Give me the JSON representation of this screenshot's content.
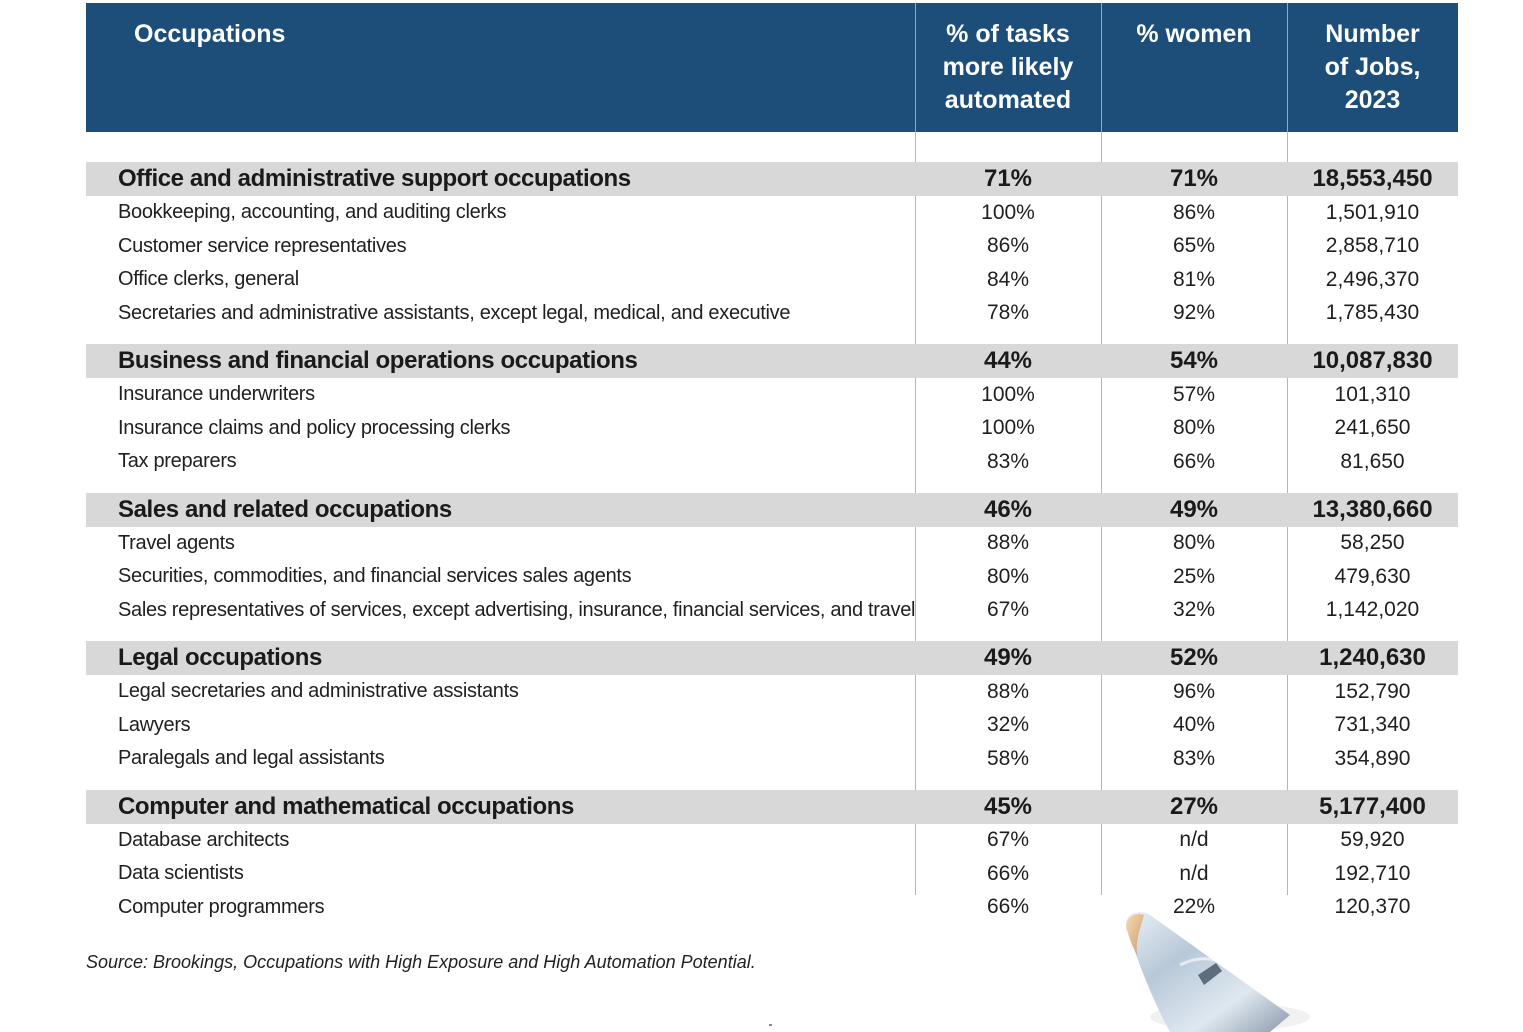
{
  "header": {
    "occupations": "Occupations",
    "pct_automated": [
      "% of tasks",
      "more likely",
      "automated"
    ],
    "pct_women": "% women",
    "jobs": [
      "Number",
      "of Jobs,",
      "2023"
    ]
  },
  "sections": [
    {
      "category": {
        "name": "Office and administrative support occupations",
        "automated": "71%",
        "women": "71%",
        "jobs": "18,553,450"
      },
      "rows": [
        {
          "name": "Bookkeeping, accounting, and auditing clerks",
          "automated": "100%",
          "women": "86%",
          "jobs": "1,501,910"
        },
        {
          "name": "Customer service representatives",
          "automated": "86%",
          "women": "65%",
          "jobs": "2,858,710"
        },
        {
          "name": "Office clerks, general",
          "automated": "84%",
          "women": "81%",
          "jobs": "2,496,370"
        },
        {
          "name": "Secretaries and administrative assistants, except legal,  medical, and executive",
          "automated": "78%",
          "women": "92%",
          "jobs": "1,785,430"
        }
      ]
    },
    {
      "category": {
        "name": "Business and financial operations occupations",
        "automated": "44%",
        "women": "54%",
        "jobs": "10,087,830"
      },
      "rows": [
        {
          "name": "Insurance underwriters",
          "automated": "100%",
          "women": "57%",
          "jobs": "101,310"
        },
        {
          "name": "Insurance claims and policy processing clerks",
          "automated": "100%",
          "women": "80%",
          "jobs": "241,650"
        },
        {
          "name": "Tax preparers",
          "automated": "83%",
          "women": "66%",
          "jobs": "81,650"
        }
      ]
    },
    {
      "category": {
        "name": "Sales and related occupations",
        "automated": "46%",
        "women": "49%",
        "jobs": "13,380,660"
      },
      "rows": [
        {
          "name": "Travel agents",
          "automated": "88%",
          "women": "80%",
          "jobs": "58,250"
        },
        {
          "name": "Securities, commodities, and financial services sales agents",
          "automated": "80%",
          "women": "25%",
          "jobs": "479,630"
        },
        {
          "name": "Sales representatives of services, except advertising, insurance, financial services, and travel",
          "automated": "67%",
          "women": "32%",
          "jobs": "1,142,020"
        }
      ]
    },
    {
      "category": {
        "name": "Legal occupations",
        "automated": "49%",
        "women": "52%",
        "jobs": "1,240,630"
      },
      "rows": [
        {
          "name": "Legal secretaries and administrative assistants",
          "automated": "88%",
          "women": "96%",
          "jobs": "152,790"
        },
        {
          "name": "Lawyers",
          "automated": "32%",
          "women": "40%",
          "jobs": "731,340"
        },
        {
          "name": "Paralegals and legal assistants",
          "automated": "58%",
          "women": "83%",
          "jobs": "354,890"
        }
      ]
    },
    {
      "category": {
        "name": "Computer and mathematical occupations",
        "automated": "45%",
        "women": "27%",
        "jobs": "5,177,400"
      },
      "rows": [
        {
          "name": "Database architects",
          "automated": "67%",
          "women": "n/d",
          "jobs": "59,920"
        },
        {
          "name": "Data scientists",
          "automated": "66%",
          "women": "n/d",
          "jobs": "192,710"
        },
        {
          "name": "Computer programmers",
          "automated": "66%",
          "women": "22%",
          "jobs": "120,370"
        }
      ]
    }
  ],
  "source": "Source: Brookings, Occupations with High Exposure and High Automation Potential.",
  "colors": {
    "header_bg": "#1d4e7a",
    "category_bg": "#d8d8d8",
    "grid": "#b5b5b5"
  },
  "decoration": {
    "image": "robot-finger-icon"
  }
}
